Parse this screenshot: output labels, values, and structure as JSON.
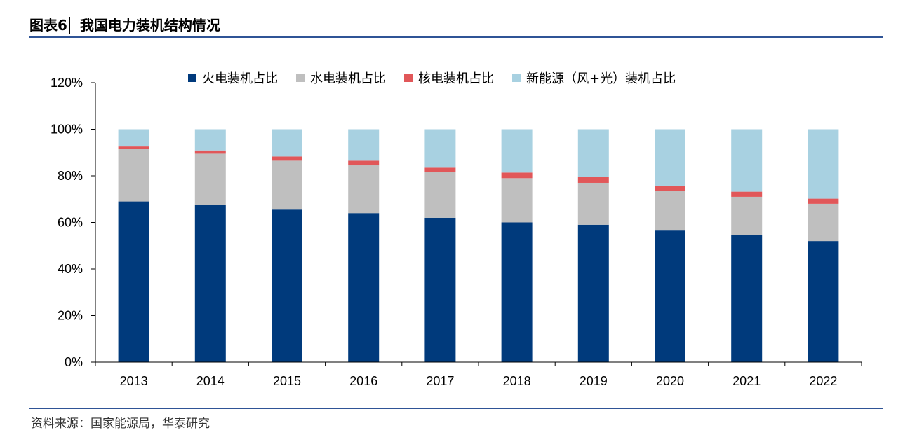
{
  "header": {
    "title_prefix": "图表6",
    "title_text": "我国电力装机结构情况"
  },
  "source": {
    "text": "资料来源：国家能源局，华泰研究"
  },
  "colors": {
    "thermal": "#003a7c",
    "hydro": "#bfbfbf",
    "nuclear": "#e15759",
    "renewable": "#a8d1e1",
    "rule": "#2f5496",
    "axis": "#000000"
  },
  "chart_data": {
    "type": "bar",
    "stacked": true,
    "categories": [
      "2013",
      "2014",
      "2015",
      "2016",
      "2017",
      "2018",
      "2019",
      "2020",
      "2021",
      "2022"
    ],
    "series": [
      {
        "name": "火电装机占比",
        "color_key": "thermal",
        "values": [
          69,
          67.5,
          65.5,
          64,
          62,
          60,
          59,
          56.5,
          54.5,
          52
        ]
      },
      {
        "name": "水电装机占比",
        "color_key": "hydro",
        "values": [
          22.5,
          22,
          21,
          20.5,
          19.5,
          19,
          18,
          17,
          16.5,
          16
        ]
      },
      {
        "name": "核电装机占比",
        "color_key": "nuclear",
        "values": [
          1.1,
          1.4,
          1.8,
          2.0,
          2.0,
          2.4,
          2.4,
          2.3,
          2.2,
          2.2
        ]
      },
      {
        "name": "新能源（风+光）装机占比",
        "color_key": "renewable",
        "values": [
          7.4,
          9.1,
          11.7,
          13.5,
          16.5,
          18.6,
          20.6,
          24.2,
          26.8,
          29.8
        ]
      }
    ],
    "y_ticks": [
      "0%",
      "20%",
      "40%",
      "60%",
      "80%",
      "100%",
      "120%"
    ],
    "ylim": [
      0,
      120
    ],
    "xlabel": "",
    "ylabel": "",
    "legend_position": "top",
    "grid": false
  }
}
